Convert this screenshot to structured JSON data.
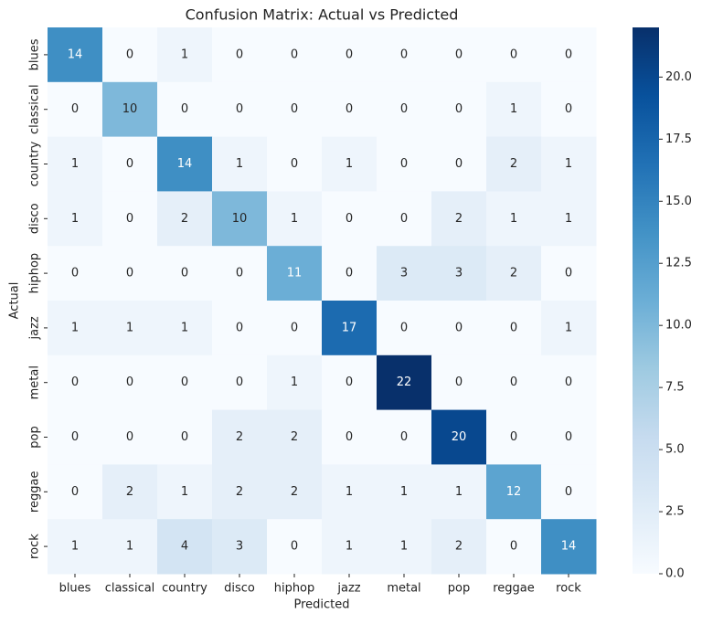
{
  "chart_data": {
    "type": "heatmap",
    "title": "Confusion Matrix: Actual vs Predicted",
    "x_label": "Predicted",
    "y_label": "Actual",
    "x_categories": [
      "blues",
      "classical",
      "country",
      "disco",
      "hiphop",
      "jazz",
      "metal",
      "pop",
      "reggae",
      "rock"
    ],
    "y_categories": [
      "blues",
      "classical",
      "country",
      "disco",
      "hiphop",
      "jazz",
      "metal",
      "pop",
      "reggae",
      "rock"
    ],
    "values": [
      [
        14,
        0,
        1,
        0,
        0,
        0,
        0,
        0,
        0,
        0
      ],
      [
        0,
        10,
        0,
        0,
        0,
        0,
        0,
        0,
        1,
        0
      ],
      [
        1,
        0,
        14,
        1,
        0,
        1,
        0,
        0,
        2,
        1
      ],
      [
        1,
        0,
        2,
        10,
        1,
        0,
        0,
        2,
        1,
        1
      ],
      [
        0,
        0,
        0,
        0,
        11,
        0,
        3,
        3,
        2,
        0
      ],
      [
        1,
        1,
        1,
        0,
        0,
        17,
        0,
        0,
        0,
        1
      ],
      [
        0,
        0,
        0,
        0,
        1,
        0,
        22,
        0,
        0,
        0
      ],
      [
        0,
        0,
        0,
        2,
        2,
        0,
        0,
        20,
        0,
        0
      ],
      [
        0,
        2,
        1,
        2,
        2,
        1,
        1,
        1,
        12,
        0
      ],
      [
        1,
        1,
        4,
        3,
        0,
        1,
        1,
        2,
        0,
        14
      ]
    ],
    "colormap": [
      "#f7fbff",
      "#deebf7",
      "#c6dbef",
      "#9ecae1",
      "#6baed6",
      "#4292c6",
      "#2171b5",
      "#08519c",
      "#08306b"
    ],
    "clim": [
      0,
      22
    ],
    "cticks": [
      {
        "value": 0,
        "label": "0.0"
      },
      2.5,
      {
        "value": 5,
        "label": "5.0"
      },
      7.5,
      {
        "value": 10,
        "label": "10.0"
      },
      12.5,
      {
        "value": 15,
        "label": "15.0"
      },
      17.5,
      {
        "value": 20,
        "label": "20.0"
      }
    ]
  }
}
